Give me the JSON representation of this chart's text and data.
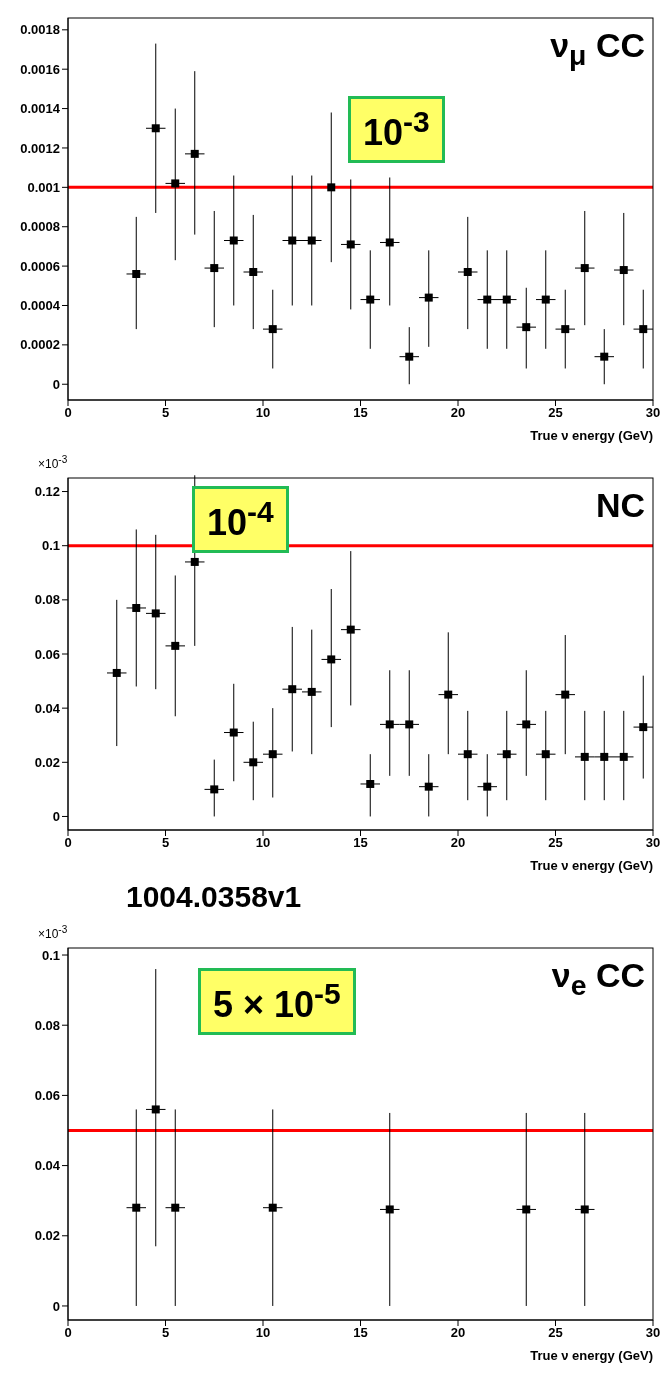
{
  "chart_data": [
    {
      "type": "scatter",
      "xlabel": "True ν energy (GeV)",
      "marker": "square",
      "xlim": [
        0,
        30
      ],
      "xticks": [
        0,
        5,
        10,
        15,
        20,
        25,
        30
      ],
      "ylim": [
        -8e-05,
        0.00186
      ],
      "yticks": [
        0,
        0.0002,
        0.0004,
        0.0006,
        0.0008,
        0.001,
        0.0012,
        0.0014,
        0.0016,
        0.0018
      ],
      "series": [
        {
          "color": "#000000",
          "x": [
            3.5,
            4.5,
            5.5,
            6.5,
            7.5,
            8.5,
            9.5,
            10.5,
            11.5,
            12.5,
            13.5,
            14.5,
            15.5,
            16.5,
            17.5,
            18.5,
            20.5,
            21.5,
            22.5,
            23.5,
            24.5,
            25.5,
            26.5,
            27.5,
            28.5,
            29.5
          ],
          "values": [
            0.00056,
            0.0013,
            0.00102,
            0.00117,
            0.00059,
            0.00073,
            0.00057,
            0.00028,
            0.00073,
            0.00073,
            0.001,
            0.00071,
            0.00043,
            0.00072,
            0.00014,
            0.00044,
            0.00057,
            0.00043,
            0.00043,
            0.00029,
            0.00043,
            0.00028,
            0.00059,
            0.00014,
            0.00058,
            0.00028
          ],
          "errors": [
            [
              0.00028,
              0.00085
            ],
            [
              0.00087,
              0.00173
            ],
            [
              0.00063,
              0.0014
            ],
            [
              0.00076,
              0.00159
            ],
            [
              0.00029,
              0.00088
            ],
            [
              0.0004,
              0.00106
            ],
            [
              0.00028,
              0.00086
            ],
            [
              8e-05,
              0.00048
            ],
            [
              0.0004,
              0.00106
            ],
            [
              0.0004,
              0.00106
            ],
            [
              0.00062,
              0.00138
            ],
            [
              0.00038,
              0.00104
            ],
            [
              0.00018,
              0.00068
            ],
            [
              0.0004,
              0.00105
            ],
            [
              0,
              0.00029
            ],
            [
              0.00019,
              0.00068
            ],
            [
              0.00028,
              0.00085
            ],
            [
              0.00018,
              0.00068
            ],
            [
              0.00018,
              0.00068
            ],
            [
              8e-05,
              0.00049
            ],
            [
              0.00018,
              0.00068
            ],
            [
              8e-05,
              0.00048
            ],
            [
              0.0003,
              0.00088
            ],
            [
              0,
              0.00028
            ],
            [
              0.0003,
              0.00087
            ],
            [
              8e-05,
              0.00048
            ]
          ],
          "xerrors": [
            0.5,
            0.5,
            0.5,
            0.5,
            0.5,
            0.5,
            0.5,
            0.5,
            0.5,
            0.5,
            null,
            0.5,
            0.5,
            0.5,
            0.5,
            0.5,
            0.5,
            0.5,
            0.5,
            0.5,
            0.5,
            0.5,
            0.5,
            0.5,
            0.5,
            0.5
          ]
        }
      ],
      "ref_lines": [
        {
          "axis": "y",
          "value": 0.001,
          "color": "#ff0000"
        }
      ],
      "annotations": [
        "10$^{-3}$",
        "ν$_{μ}$ CC"
      ]
    },
    {
      "type": "scatter",
      "xlabel": "True ν energy (GeV)",
      "marker": "square",
      "xlim": [
        0,
        30
      ],
      "xticks": [
        0,
        5,
        10,
        15,
        20,
        25,
        30
      ],
      "ylim": [
        -0.005,
        0.125
      ],
      "yticks": [
        0,
        0.02,
        0.04,
        0.06,
        0.08,
        0.1,
        0.12
      ],
      "series": [
        {
          "color": "#000000",
          "x": [
            2.5,
            3.5,
            4.5,
            5.5,
            6.5,
            7.5,
            8.5,
            9.5,
            10.5,
            11.5,
            12.5,
            13.5,
            14.5,
            15.5,
            16.5,
            17.5,
            18.5,
            19.5,
            20.5,
            21.5,
            22.5,
            23.5,
            24.5,
            25.5,
            26.5,
            27.5,
            28.5,
            29.5
          ],
          "values": [
            0.053,
            0.077,
            0.075,
            0.063,
            0.094,
            0.01,
            0.031,
            0.02,
            0.023,
            0.047,
            0.046,
            0.058,
            0.069,
            0.012,
            0.034,
            0.034,
            0.011,
            0.045,
            0.023,
            0.011,
            0.023,
            0.034,
            0.023,
            0.045,
            0.022,
            0.022,
            0.022,
            0.033
          ],
          "errors": [
            [
              0.026,
              0.08
            ],
            [
              0.048,
              0.106
            ],
            [
              0.047,
              0.104
            ],
            [
              0.037,
              0.089
            ],
            [
              0.063,
              0.126
            ],
            [
              0,
              0.021
            ],
            [
              0.013,
              0.049
            ],
            [
              0.006,
              0.035
            ],
            [
              0.007,
              0.04
            ],
            [
              0.024,
              0.07
            ],
            [
              0.023,
              0.069
            ],
            [
              0.033,
              0.084
            ],
            [
              0.041,
              0.098
            ],
            [
              0,
              0.023
            ],
            [
              0.015,
              0.054
            ],
            [
              0.015,
              0.054
            ],
            [
              0,
              0.023
            ],
            [
              0.023,
              0.068
            ],
            [
              0.006,
              0.039
            ],
            [
              0,
              0.023
            ],
            [
              0.006,
              0.039
            ],
            [
              0.015,
              0.054
            ],
            [
              0.006,
              0.039
            ],
            [
              0.023,
              0.067
            ],
            [
              0.006,
              0.039
            ],
            [
              0.006,
              0.039
            ],
            [
              0.006,
              0.039
            ],
            [
              0.014,
              0.052
            ]
          ],
          "xerrors": [
            0.5,
            0.5,
            0.5,
            0.5,
            0.5,
            0.5,
            0.5,
            0.5,
            0.5,
            0.5,
            0.5,
            0.5,
            0.5,
            0.5,
            0.5,
            0.5,
            0.5,
            0.5,
            0.5,
            0.5,
            0.5,
            0.5,
            0.5,
            0.5,
            0.5,
            0.5,
            0.5,
            0.5
          ]
        }
      ],
      "ref_lines": [
        {
          "axis": "y",
          "value": 0.1,
          "color": "#ff0000"
        }
      ],
      "annotations": [
        "10$^{-4}$",
        "NC",
        "×10$^{-3}$"
      ]
    },
    {
      "type": "scatter",
      "xlabel": "True ν energy (GeV)",
      "marker": "square",
      "xlim": [
        0,
        30
      ],
      "xticks": [
        0,
        5,
        10,
        15,
        20,
        25,
        30
      ],
      "ylim": [
        -0.004,
        0.102
      ],
      "yticks": [
        0,
        0.02,
        0.04,
        0.06,
        0.08,
        0.1
      ],
      "series": [
        {
          "color": "#000000",
          "x": [
            3.5,
            4.5,
            5.5,
            10.5,
            16.5,
            23.5,
            26.5
          ],
          "values": [
            0.028,
            0.056,
            0.028,
            0.028,
            0.0275,
            0.0275,
            0.0275
          ],
          "errors": [
            [
              0,
              0.056
            ],
            [
              0.017,
              0.096
            ],
            [
              0,
              0.056
            ],
            [
              0,
              0.056
            ],
            [
              0,
              0.055
            ],
            [
              0,
              0.055
            ],
            [
              0,
              0.055
            ]
          ],
          "xerrors": [
            0.5,
            0.5,
            0.5,
            0.5,
            0.5,
            0.5,
            0.5
          ]
        }
      ],
      "ref_lines": [
        {
          "axis": "y",
          "value": 0.05,
          "color": "#ff0000"
        }
      ],
      "annotations": [
        "5 × 10$^{-5}$",
        "ν$_{e}$ CC",
        "×10$^{-3}$",
        "1004.0358v1"
      ]
    }
  ]
}
